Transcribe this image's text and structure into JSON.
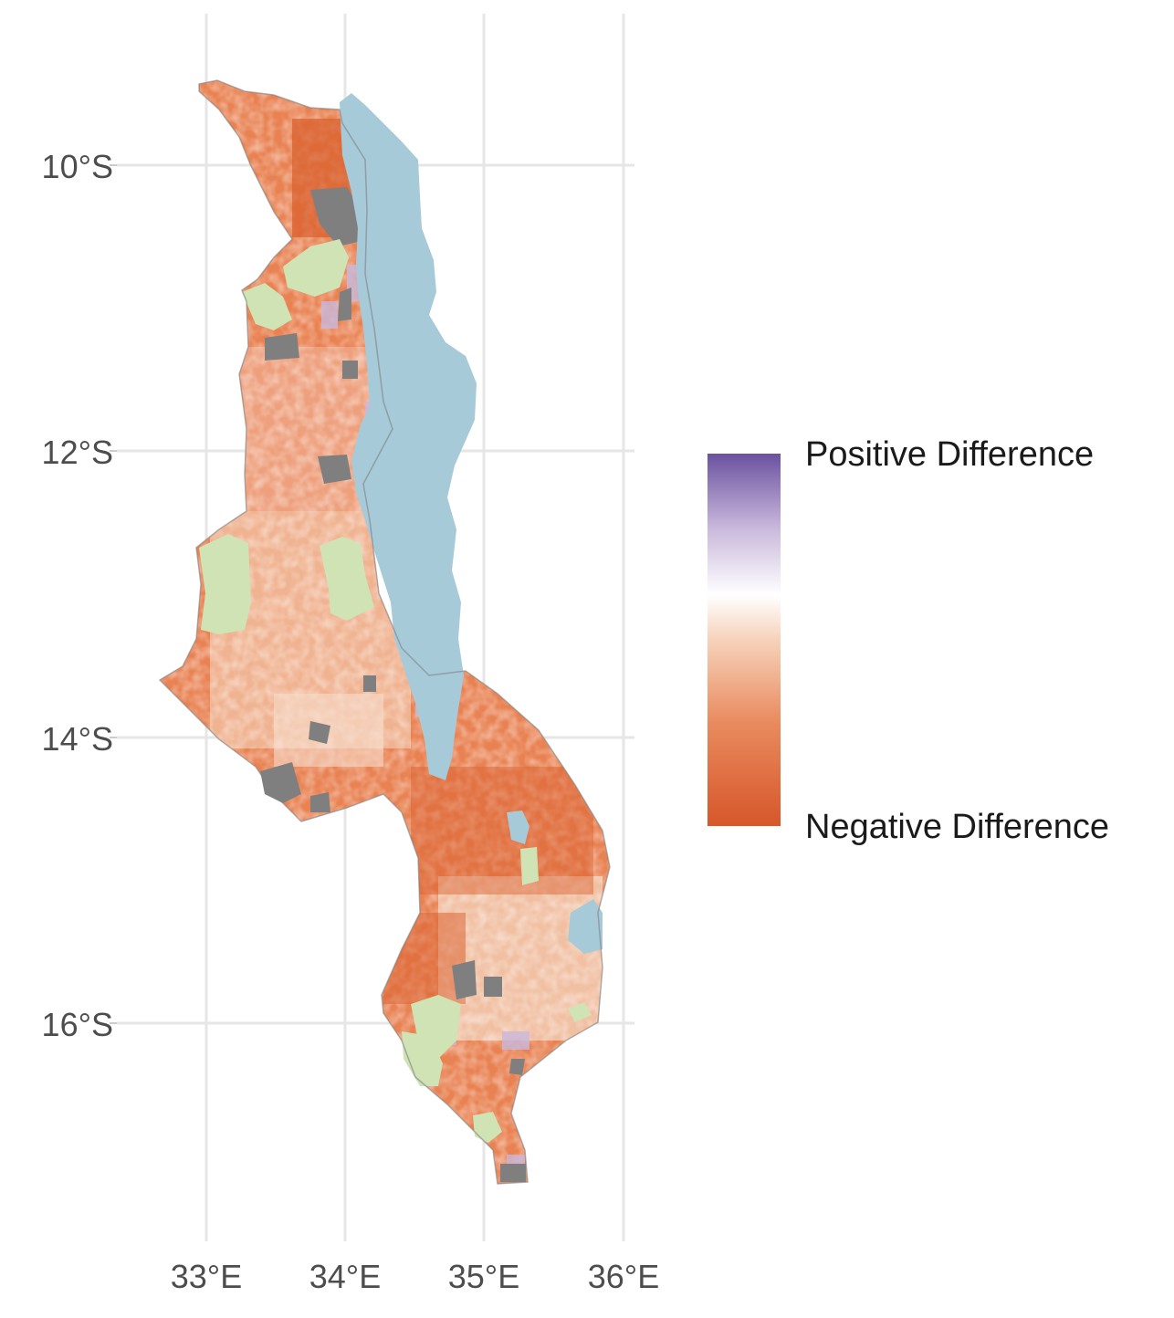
{
  "map": {
    "region": "Malawi",
    "axes": {
      "y_ticks": [
        "10°S",
        "12°S",
        "14°S",
        "16°S"
      ],
      "y_values": [
        -10,
        -12,
        -14,
        -16
      ],
      "x_ticks": [
        "33°E",
        "34°E",
        "35°E",
        "36°E"
      ],
      "x_values": [
        33,
        34,
        35,
        36
      ],
      "grid": true
    },
    "legend": {
      "high_label": "Positive Difference",
      "low_label": "Negative Difference",
      "placement": "right",
      "colors": [
        "#d6572a",
        "#e98b5f",
        "#f6d2bb",
        "#ffffff",
        "#c9b8dc",
        "#6b51a0"
      ]
    },
    "colors": {
      "lake": "#a6cad8",
      "protected_area": "#cfe3b5",
      "no_data": "#7f7f7f",
      "grid": "#e6e6e6"
    }
  }
}
